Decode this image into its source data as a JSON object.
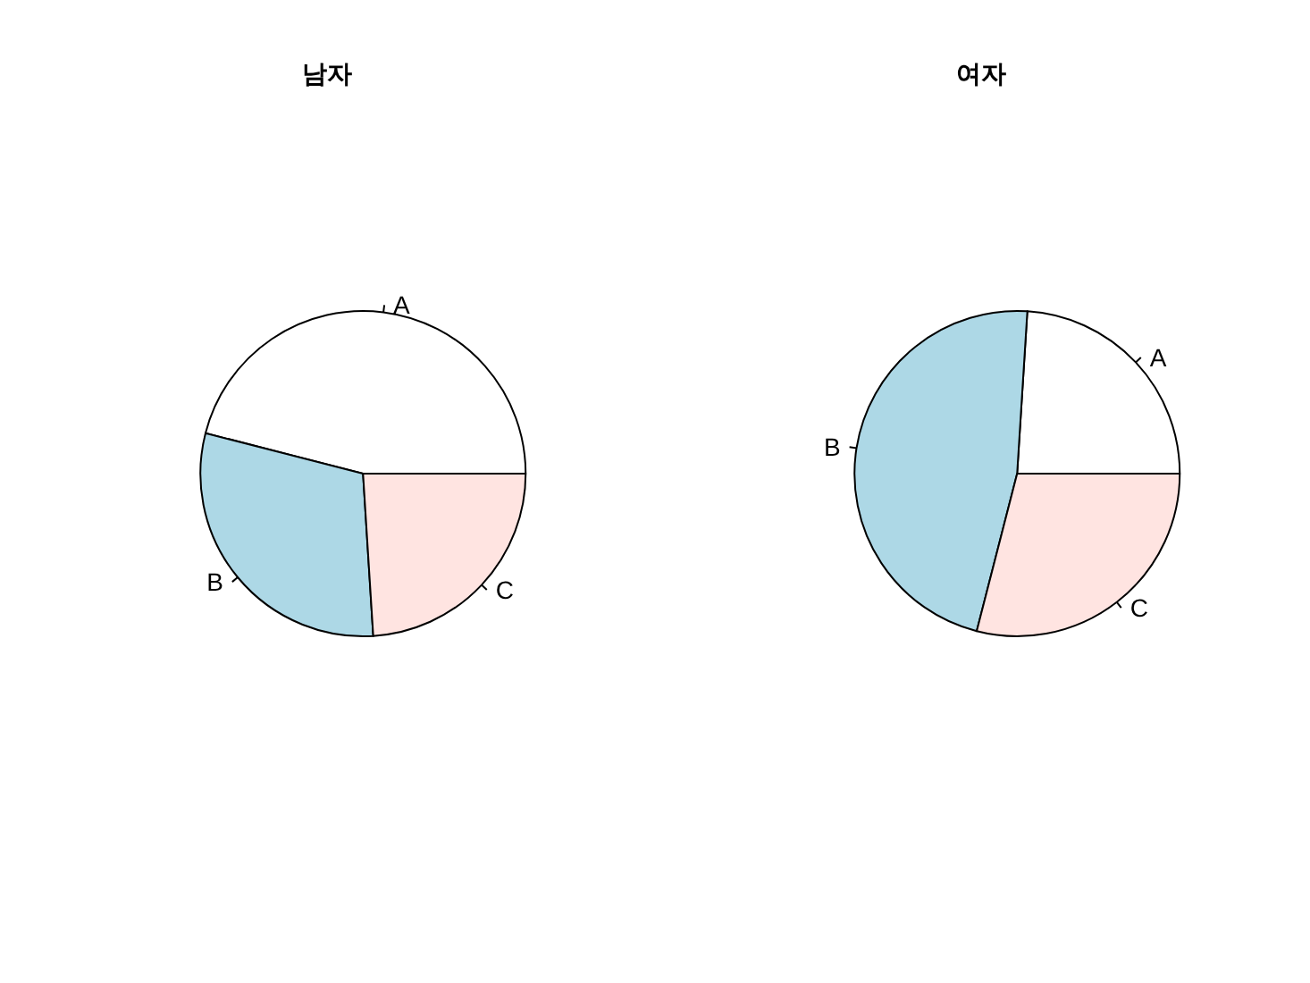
{
  "chart_data": [
    {
      "type": "pie",
      "title": "남자",
      "categories": [
        "A",
        "B",
        "C"
      ],
      "values": [
        46,
        30,
        24
      ],
      "colors": [
        "#ffffff",
        "#add8e6",
        "#ffe4e1"
      ]
    },
    {
      "type": "pie",
      "title": "여자",
      "categories": [
        "A",
        "B",
        "C"
      ],
      "values": [
        24,
        47,
        29
      ],
      "colors": [
        "#ffffff",
        "#add8e6",
        "#ffe4e1"
      ]
    }
  ]
}
